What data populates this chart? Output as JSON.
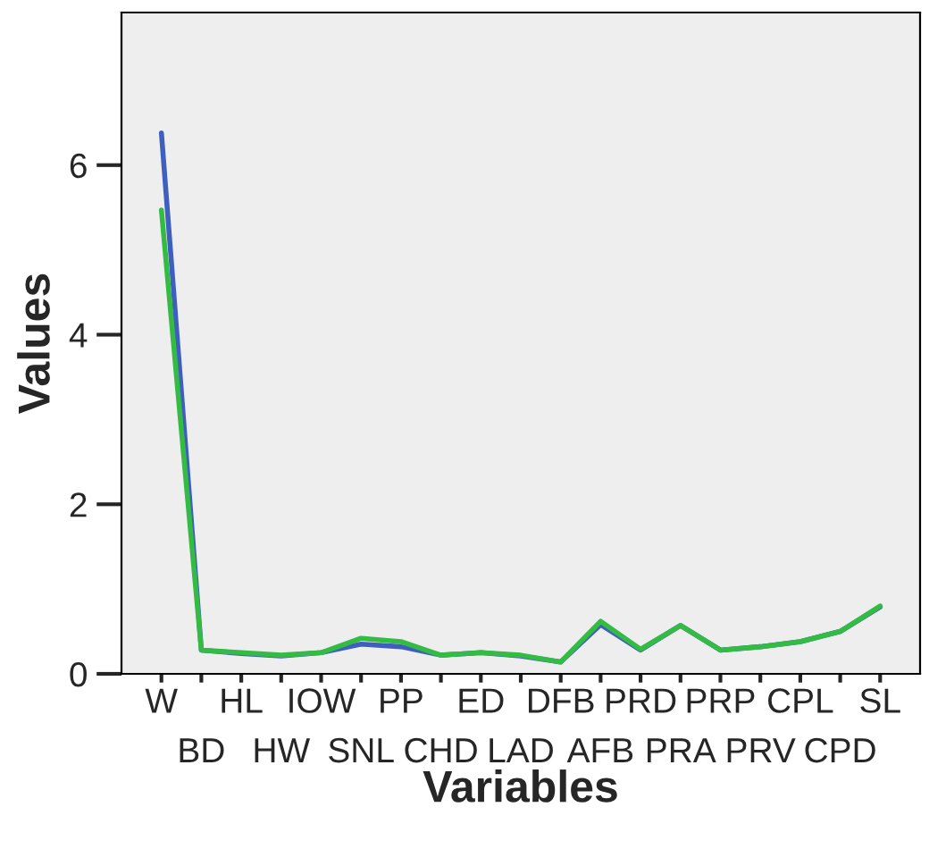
{
  "chart_data": {
    "type": "line",
    "xlabel": "Variables",
    "ylabel": "Values",
    "categories": [
      "W",
      "BD",
      "HL",
      "HW",
      "IOW",
      "SNL",
      "PP",
      "CHD",
      "ED",
      "LAD",
      "DFB",
      "AFB",
      "PRD",
      "PRA",
      "PRP",
      "PRV",
      "CPL",
      "CPD",
      "SL"
    ],
    "series": [
      {
        "color": "#3f5fbf",
        "values": [
          6.38,
          0.28,
          0.24,
          0.21,
          0.25,
          0.35,
          0.32,
          0.22,
          0.25,
          0.21,
          0.14,
          0.58,
          0.28,
          0.57,
          0.28,
          0.32,
          0.38,
          0.5,
          0.79
        ]
      },
      {
        "color": "#33bb44",
        "values": [
          5.47,
          0.28,
          0.25,
          0.22,
          0.25,
          0.42,
          0.38,
          0.22,
          0.25,
          0.22,
          0.14,
          0.62,
          0.29,
          0.57,
          0.28,
          0.32,
          0.38,
          0.5,
          0.8
        ]
      }
    ],
    "ylim": [
      0,
      7.8
    ],
    "yticks": [
      0,
      2,
      4,
      6
    ],
    "grid": false,
    "marker": "none",
    "line_style": "solid"
  }
}
